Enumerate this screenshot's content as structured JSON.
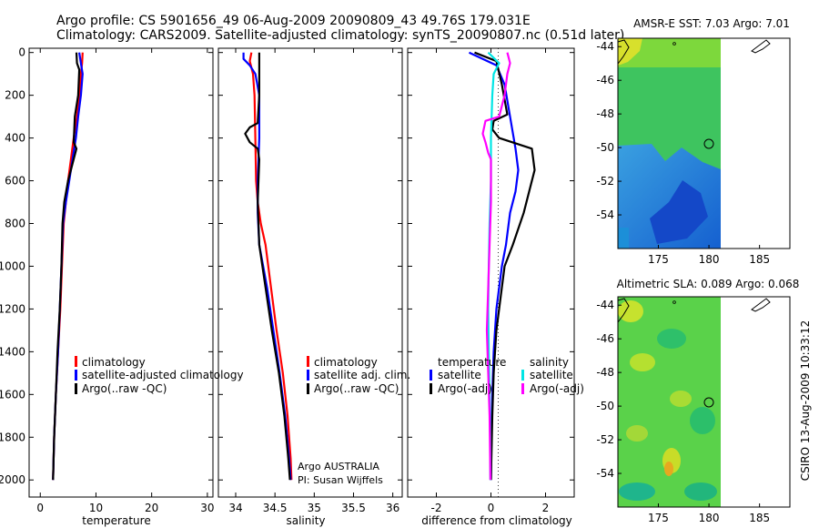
{
  "header": {
    "line1": "Argo profile: CS 5901656_49 06-Aug-2009 20090809_43 49.76S 179.031E",
    "line2": "Climatology: CARS2009. Satellite-adjusted climatology: synTS_20090807.nc (0.51d later)"
  },
  "side_label": "CSIRO 13-Aug-2009 10:33:12",
  "colors": {
    "climatology": "#ff0000",
    "satellite": "#0000ff",
    "argo": "#000000",
    "magenta": "#ff00ff",
    "cyan": "#00e5e5"
  },
  "chart_data": [
    {
      "type": "line",
      "id": "temperature",
      "xlabel": "temperature",
      "ylabel": "",
      "xlim": [
        -2,
        31
      ],
      "ylim": [
        2080,
        -20
      ],
      "xticks": [
        0,
        10,
        20,
        30
      ],
      "yticks": [
        0,
        200,
        400,
        600,
        800,
        1000,
        1200,
        1400,
        1600,
        1800,
        2000
      ],
      "legend": [
        "climatology",
        "satellite-adjusted climatology",
        "Argo(..raw -QC)"
      ],
      "series": [
        {
          "name": "climatology",
          "color": "#ff0000",
          "points": [
            [
              7.6,
              0
            ],
            [
              7.5,
              50
            ],
            [
              7.3,
              100
            ],
            [
              7.0,
              200
            ],
            [
              6.6,
              300
            ],
            [
              6.0,
              400
            ],
            [
              5.5,
              500
            ],
            [
              5.0,
              600
            ],
            [
              4.6,
              700
            ],
            [
              4.2,
              800
            ],
            [
              3.9,
              1000
            ],
            [
              3.6,
              1200
            ],
            [
              3.2,
              1400
            ],
            [
              2.8,
              1600
            ],
            [
              2.5,
              1800
            ],
            [
              2.3,
              2000
            ]
          ]
        },
        {
          "name": "satellite-adjusted climatology",
          "color": "#0000ff",
          "points": [
            [
              7.0,
              0
            ],
            [
              7.3,
              50
            ],
            [
              7.6,
              100
            ],
            [
              7.3,
              200
            ],
            [
              6.8,
              300
            ],
            [
              6.4,
              400
            ],
            [
              5.8,
              500
            ],
            [
              5.2,
              600
            ],
            [
              4.6,
              700
            ],
            [
              4.1,
              800
            ],
            [
              3.8,
              1000
            ],
            [
              3.5,
              1200
            ],
            [
              3.2,
              1400
            ],
            [
              2.8,
              1600
            ],
            [
              2.5,
              1800
            ],
            [
              2.3,
              2000
            ]
          ]
        },
        {
          "name": "Argo(..raw -QC)",
          "color": "#000000",
          "points": [
            [
              6.5,
              0
            ],
            [
              6.6,
              50
            ],
            [
              7.0,
              80
            ],
            [
              6.8,
              200
            ],
            [
              6.2,
              300
            ],
            [
              6.0,
              420
            ],
            [
              6.5,
              450
            ],
            [
              5.8,
              520
            ],
            [
              5.0,
              600
            ],
            [
              4.3,
              700
            ],
            [
              4.0,
              800
            ],
            [
              3.8,
              1000
            ],
            [
              3.5,
              1200
            ],
            [
              3.1,
              1400
            ],
            [
              2.8,
              1600
            ],
            [
              2.5,
              1800
            ],
            [
              2.3,
              2000
            ]
          ]
        }
      ]
    },
    {
      "type": "line",
      "id": "salinity",
      "xlabel": "salinity",
      "ylabel": "",
      "xlim": [
        33.78,
        36.12
      ],
      "ylim": [
        2080,
        -20
      ],
      "xticks": [
        34,
        34.5,
        35,
        35.5,
        36
      ],
      "xticklabels": [
        "34",
        "34.5",
        "35",
        "35.5",
        "36"
      ],
      "legend": [
        "climatology",
        "satellite adj. clim.",
        "Argo(..raw -QC)"
      ],
      "annotation": [
        "Argo AUSTRALIA",
        "PI: Susan Wijffels"
      ],
      "series": [
        {
          "name": "climatology",
          "color": "#ff0000",
          "points": [
            [
              34.2,
              0
            ],
            [
              34.18,
              40
            ],
            [
              34.22,
              100
            ],
            [
              34.24,
              200
            ],
            [
              34.25,
              400
            ],
            [
              34.26,
              600
            ],
            [
              34.28,
              700
            ],
            [
              34.32,
              800
            ],
            [
              34.38,
              900
            ],
            [
              34.45,
              1100
            ],
            [
              34.52,
              1300
            ],
            [
              34.6,
              1500
            ],
            [
              34.66,
              1700
            ],
            [
              34.7,
              1900
            ],
            [
              34.71,
              2000
            ]
          ]
        },
        {
          "name": "satellite adj. clim.",
          "color": "#0000ff",
          "points": [
            [
              34.1,
              0
            ],
            [
              34.1,
              30
            ],
            [
              34.18,
              60
            ],
            [
              34.25,
              100
            ],
            [
              34.3,
              200
            ],
            [
              34.3,
              400
            ],
            [
              34.28,
              600
            ],
            [
              34.28,
              750
            ],
            [
              34.3,
              900
            ],
            [
              34.4,
              1100
            ],
            [
              34.48,
              1300
            ],
            [
              34.56,
              1500
            ],
            [
              34.63,
              1700
            ],
            [
              34.68,
              1900
            ],
            [
              34.7,
              2000
            ]
          ]
        },
        {
          "name": "Argo(..raw -QC)",
          "color": "#000000",
          "points": [
            [
              34.3,
              0
            ],
            [
              34.3,
              200
            ],
            [
              34.28,
              330
            ],
            [
              34.18,
              350
            ],
            [
              34.12,
              380
            ],
            [
              34.18,
              420
            ],
            [
              34.28,
              450
            ],
            [
              34.3,
              500
            ],
            [
              34.28,
              700
            ],
            [
              34.3,
              900
            ],
            [
              34.38,
              1100
            ],
            [
              34.46,
              1300
            ],
            [
              34.55,
              1500
            ],
            [
              34.62,
              1700
            ],
            [
              34.67,
              1900
            ],
            [
              34.69,
              2000
            ]
          ]
        }
      ]
    },
    {
      "type": "line",
      "id": "difference",
      "xlabel": "difference from climatology",
      "ylabel": "",
      "xlim": [
        -3.05,
        3.05
      ],
      "ylim": [
        2080,
        -20
      ],
      "xticks": [
        -2,
        0,
        2
      ],
      "legend_headers": [
        "temperature",
        "salinity"
      ],
      "legend": [
        "satellite",
        "Argo(-adj)",
        "satellite",
        "Argo(-adj)"
      ],
      "series": [
        {
          "name": "satellite",
          "group": "temperature",
          "color": "#0000ff",
          "points": [
            [
              -0.8,
              0
            ],
            [
              0.2,
              60
            ],
            [
              0.5,
              150
            ],
            [
              0.7,
              300
            ],
            [
              0.9,
              450
            ],
            [
              1.0,
              550
            ],
            [
              0.9,
              650
            ],
            [
              0.7,
              750
            ],
            [
              0.55,
              900
            ],
            [
              0.4,
              1000
            ],
            [
              0.3,
              1100
            ],
            [
              0.2,
              1200
            ],
            [
              0.1,
              1400
            ],
            [
              0.05,
              1600
            ],
            [
              0.02,
              1800
            ],
            [
              0.0,
              2000
            ]
          ]
        },
        {
          "name": "Argo(-adj)",
          "group": "temperature",
          "color": "#000000",
          "points": [
            [
              -0.6,
              0
            ],
            [
              0.2,
              40
            ],
            [
              0.4,
              150
            ],
            [
              0.6,
              290
            ],
            [
              0.1,
              320
            ],
            [
              0.05,
              360
            ],
            [
              0.3,
              400
            ],
            [
              1.5,
              450
            ],
            [
              1.6,
              550
            ],
            [
              1.4,
              650
            ],
            [
              1.2,
              750
            ],
            [
              0.8,
              900
            ],
            [
              0.5,
              1000
            ],
            [
              0.35,
              1150
            ],
            [
              0.2,
              1300
            ],
            [
              0.1,
              1500
            ],
            [
              0.05,
              1700
            ],
            [
              0.0,
              2000
            ]
          ]
        },
        {
          "name": "satellite",
          "group": "salinity",
          "color": "#00e5e5",
          "points": [
            [
              -0.1,
              0
            ],
            [
              0.3,
              50
            ],
            [
              0.1,
              100
            ],
            [
              0.05,
              200
            ],
            [
              0.0,
              400
            ],
            [
              0.0,
              600
            ],
            [
              -0.05,
              800
            ],
            [
              -0.08,
              1000
            ],
            [
              -0.1,
              1200
            ],
            [
              -0.08,
              1400
            ],
            [
              -0.05,
              1600
            ],
            [
              -0.03,
              1800
            ],
            [
              -0.02,
              2000
            ]
          ]
        },
        {
          "name": "Argo(-adj)",
          "group": "salinity",
          "color": "#ff00ff",
          "points": [
            [
              0.6,
              0
            ],
            [
              0.7,
              50
            ],
            [
              0.6,
              100
            ],
            [
              0.5,
              200
            ],
            [
              0.3,
              300
            ],
            [
              -0.2,
              320
            ],
            [
              -0.3,
              380
            ],
            [
              -0.2,
              420
            ],
            [
              -0.1,
              470
            ],
            [
              0.0,
              500
            ],
            [
              0.0,
              700
            ],
            [
              -0.05,
              900
            ],
            [
              -0.1,
              1100
            ],
            [
              -0.15,
              1300
            ],
            [
              -0.1,
              1500
            ],
            [
              -0.05,
              1700
            ],
            [
              -0.02,
              2000
            ]
          ]
        }
      ]
    },
    {
      "type": "heatmap",
      "id": "sst_map",
      "title": "AMSR-E SST: 7.03 Argo: 7.01",
      "xlim": [
        171,
        188
      ],
      "ylim": [
        -56,
        -43.5
      ],
      "xticks": [
        175,
        180,
        185
      ],
      "yticks": [
        -44,
        -46,
        -48,
        -50,
        -52,
        -54
      ],
      "data_xlim": [
        171,
        180
      ],
      "argo_position": {
        "lon": 179.031,
        "lat": -49.76
      }
    },
    {
      "type": "heatmap",
      "id": "sla_map",
      "title": "Altimetric SLA: 0.089 Argo: 0.068",
      "xlim": [
        171,
        188
      ],
      "ylim": [
        -56,
        -43.5
      ],
      "xticks": [
        175,
        180,
        185
      ],
      "yticks": [
        -44,
        -46,
        -48,
        -50,
        -52,
        -54
      ],
      "data_xlim": [
        171,
        180
      ],
      "argo_position": {
        "lon": 179.031,
        "lat": -49.76
      }
    }
  ]
}
